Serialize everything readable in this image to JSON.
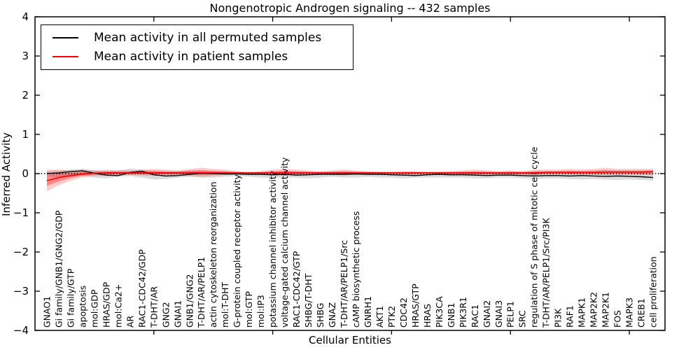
{
  "chart_data": {
    "type": "line",
    "title": "Nongenotropic Androgen signaling -- 432 samples",
    "xlabel": "Cellular Entities",
    "ylabel": "Inferred Activity",
    "ylim": [
      -4,
      4
    ],
    "yticks": [
      4,
      3,
      2,
      1,
      0,
      -1,
      -2,
      -3,
      -4
    ],
    "xticks_major": [
      10,
      20,
      30,
      40,
      50
    ],
    "grid": false,
    "legend_position": "upper left",
    "zero_line_style": "dotted",
    "categories": [
      "GNAO1",
      "Gi family/GNB1/GNG2/GDP",
      "Gi family/GTP",
      "apoptosis",
      "mol:GDP",
      "HRAS/GDP",
      "mol:Ca2+",
      "AR",
      "RAC1-CDC42/GDP",
      "T-DHT/AR",
      "GNG2",
      "GNAI1",
      "GNB1/GNG2",
      "T-DHT/AR/PELP1",
      "actin cytoskeleton reorganization",
      "mol:T-DHT",
      "G-protein coupled receptor activity",
      "mol:GTP",
      "mol:IP3",
      "potassium channel inhibitor activity",
      "voltage-gated calcium channel activity",
      "RAC1-CDC42/GTP",
      "SHBG/T-DHT",
      "SHBG",
      "GNAZ",
      "T-DHT/AR/PELP1/Src",
      "cAMP biosynthetic process",
      "GNRH1",
      "AKT1",
      "PTK2",
      "CDC42",
      "HRAS/GTP",
      "HRAS",
      "PIK3CA",
      "GNB1",
      "PIK3R1",
      "RAC1",
      "GNAI2",
      "GNAI3",
      "PELP1",
      "SRC",
      "regulation of S phase of mitotic cell cycle",
      "T-DHT/AR/PELP1/Src/PI3K",
      "PI3K",
      "RAF1",
      "MAPK1",
      "MAP2K2",
      "MAP2K1",
      "FOS",
      "MAPK3",
      "CREB1",
      "cell proliferation"
    ],
    "series": [
      {
        "name": "Mean activity in all permuted samples",
        "color": "#000000",
        "band_color": "#999999",
        "values": [
          0.0,
          0.02,
          0.05,
          0.07,
          0.01,
          -0.04,
          -0.05,
          0.03,
          0.06,
          -0.03,
          -0.06,
          -0.05,
          -0.02,
          0.01,
          0.0,
          -0.01,
          -0.01,
          -0.02,
          -0.02,
          -0.03,
          -0.02,
          -0.04,
          -0.03,
          -0.02,
          -0.02,
          -0.02,
          -0.01,
          -0.02,
          -0.02,
          -0.03,
          -0.04,
          -0.05,
          -0.03,
          -0.02,
          -0.03,
          -0.03,
          -0.04,
          -0.05,
          -0.04,
          -0.04,
          -0.05,
          -0.06,
          -0.05,
          -0.05,
          -0.06,
          -0.05,
          -0.06,
          -0.07,
          -0.06,
          -0.07,
          -0.08,
          -0.1
        ],
        "band_upper": [
          0.06,
          0.08,
          0.1,
          0.12,
          0.08,
          0.06,
          0.08,
          0.13,
          0.1,
          0.06,
          0.05,
          0.06,
          0.08,
          0.08,
          0.06,
          0.05,
          0.04,
          0.03,
          0.04,
          0.05,
          0.06,
          0.05,
          0.04,
          0.04,
          0.05,
          0.05,
          0.04,
          0.04,
          0.04,
          0.04,
          0.04,
          0.04,
          0.04,
          0.04,
          0.04,
          0.04,
          0.04,
          0.04,
          0.04,
          0.04,
          0.04,
          0.05,
          0.05,
          0.05,
          0.05,
          0.05,
          0.04,
          0.04,
          0.04,
          0.04,
          0.04,
          0.03
        ],
        "band_lower": [
          -0.06,
          -0.1,
          -0.08,
          -0.05,
          -0.1,
          -0.12,
          -0.08,
          -0.06,
          -0.1,
          -0.15,
          -0.14,
          -0.1,
          -0.08,
          -0.1,
          -0.1,
          -0.08,
          -0.06,
          -0.08,
          -0.1,
          -0.12,
          -0.1,
          -0.1,
          -0.12,
          -0.1,
          -0.08,
          -0.1,
          -0.1,
          -0.08,
          -0.1,
          -0.1,
          -0.12,
          -0.1,
          -0.1,
          -0.1,
          -0.1,
          -0.1,
          -0.12,
          -0.12,
          -0.1,
          -0.1,
          -0.12,
          -0.14,
          -0.12,
          -0.12,
          -0.14,
          -0.15,
          -0.14,
          -0.15,
          -0.16,
          -0.15,
          -0.16,
          -0.18
        ]
      },
      {
        "name": "Mean activity in patient samples",
        "color": "#ff0000",
        "band_color": "#ff0000",
        "values": [
          -0.18,
          -0.1,
          -0.05,
          -0.01,
          0.01,
          0.02,
          0.02,
          0.02,
          0.02,
          0.02,
          0.02,
          0.02,
          0.02,
          0.02,
          0.02,
          0.02,
          0.02,
          0.02,
          0.02,
          0.02,
          0.02,
          0.02,
          0.02,
          0.02,
          0.02,
          0.02,
          0.02,
          0.02,
          0.02,
          0.02,
          0.02,
          0.02,
          0.02,
          0.02,
          0.02,
          0.02,
          0.02,
          0.02,
          0.02,
          0.02,
          0.02,
          0.02,
          0.03,
          0.03,
          0.03,
          0.03,
          0.03,
          0.04,
          0.04,
          0.04,
          0.04,
          0.05
        ],
        "band_upper": [
          0.1,
          0.1,
          0.08,
          0.1,
          0.08,
          0.1,
          0.08,
          0.08,
          0.1,
          0.12,
          0.1,
          0.08,
          0.12,
          0.15,
          0.12,
          0.1,
          0.06,
          0.04,
          0.06,
          0.1,
          0.12,
          0.1,
          0.08,
          0.06,
          0.08,
          0.1,
          0.08,
          0.06,
          0.05,
          0.05,
          0.06,
          0.06,
          0.05,
          0.05,
          0.06,
          0.08,
          0.1,
          0.08,
          0.06,
          0.08,
          0.06,
          0.1,
          0.1,
          0.1,
          0.12,
          0.1,
          0.12,
          0.15,
          0.12,
          0.12,
          0.12,
          0.12
        ],
        "band_lower": [
          -0.45,
          -0.3,
          -0.18,
          -0.1,
          -0.06,
          -0.06,
          -0.05,
          -0.04,
          -0.05,
          -0.06,
          -0.05,
          -0.04,
          -0.06,
          -0.08,
          -0.06,
          -0.04,
          -0.02,
          -0.01,
          -0.02,
          -0.04,
          -0.05,
          -0.04,
          -0.03,
          -0.02,
          -0.03,
          -0.04,
          -0.03,
          -0.02,
          -0.02,
          -0.02,
          -0.03,
          -0.03,
          -0.02,
          -0.02,
          -0.03,
          -0.04,
          -0.05,
          -0.04,
          -0.03,
          -0.04,
          -0.03,
          -0.04,
          -0.02,
          -0.02,
          -0.03,
          -0.02,
          -0.03,
          -0.04,
          -0.03,
          -0.03,
          -0.04,
          -0.04
        ]
      }
    ]
  }
}
